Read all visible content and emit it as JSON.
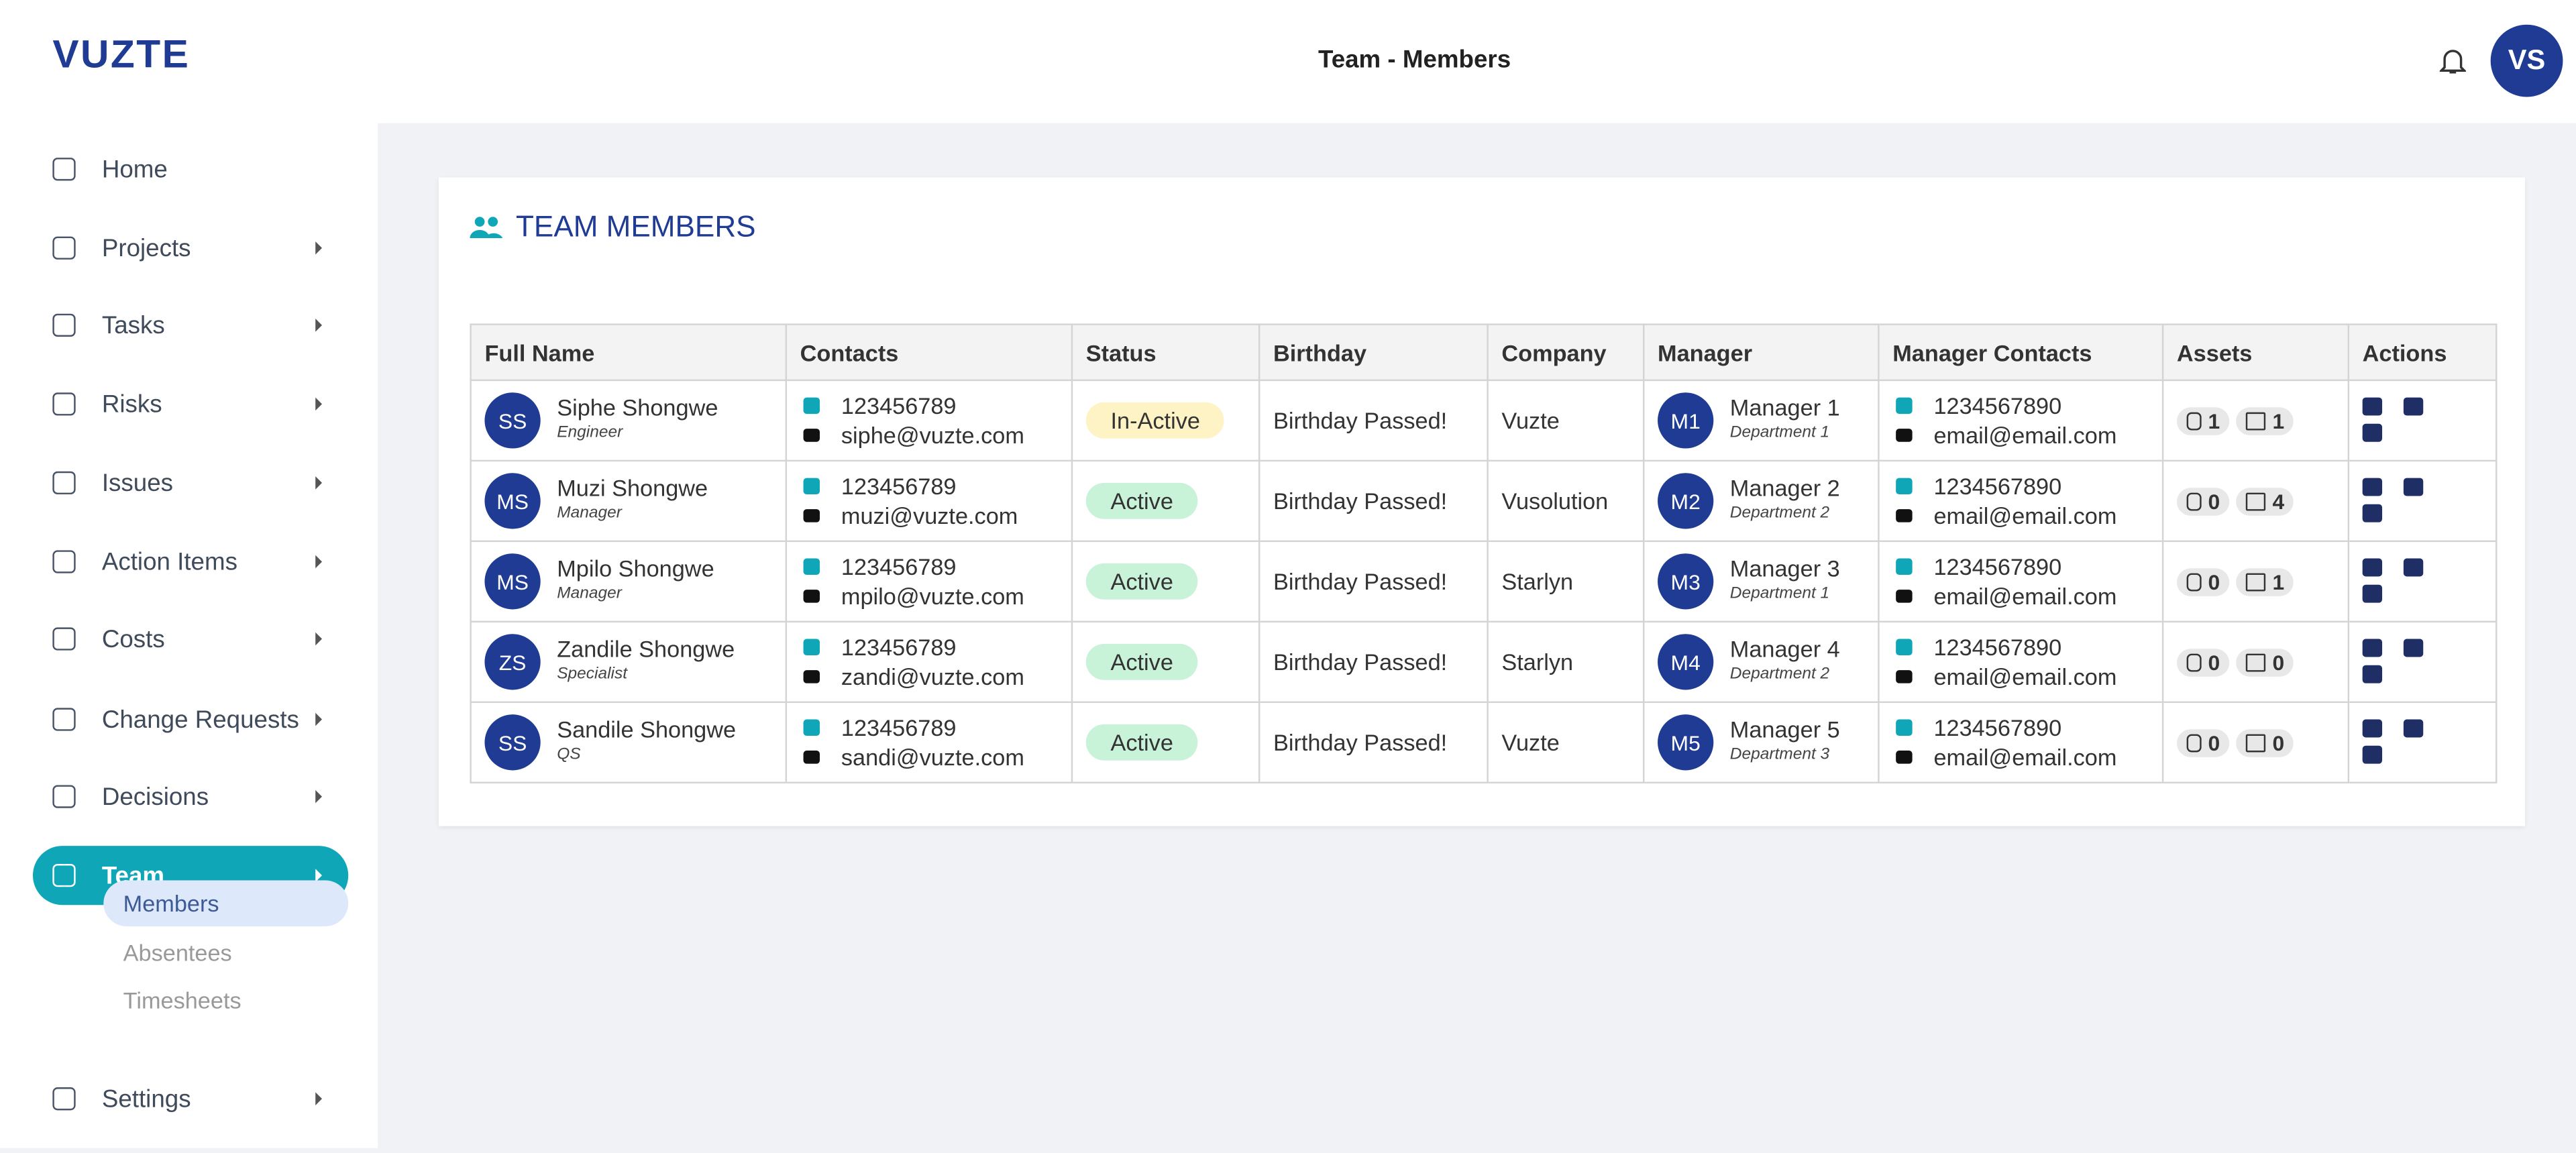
{
  "brand": "VUZTE",
  "header": {
    "title": "Team - Members",
    "user_initials": "VS"
  },
  "sidebar": {
    "items": [
      {
        "label": "Home"
      },
      {
        "label": "Projects"
      },
      {
        "label": "Tasks"
      },
      {
        "label": "Risks"
      },
      {
        "label": "Issues"
      },
      {
        "label": "Action Items"
      },
      {
        "label": "Costs"
      },
      {
        "label": "Change Requests"
      },
      {
        "label": "Decisions"
      },
      {
        "label": "Team",
        "children": [
          "Members",
          "Absentees",
          "Timesheets"
        ]
      },
      {
        "label": "Settings"
      }
    ]
  },
  "card": {
    "title": "TEAM MEMBERS"
  },
  "table": {
    "columns": [
      "Full Name",
      "Contacts",
      "Status",
      "Birthday",
      "Company",
      "Manager",
      "Manager Contacts",
      "Assets",
      "Actions"
    ],
    "rows": [
      {
        "initials": "SS",
        "name": "Siphe Shongwe",
        "role": "Engineer",
        "phone": "123456789",
        "email": "siphe@vuzte.com",
        "status": "In-Active",
        "status_color": "#fdf3c4",
        "birthday": "Birthday Passed!",
        "company": "Vuzte",
        "manager": {
          "initials": "M1",
          "name": "Manager 1",
          "department": "Department 1",
          "phone": "1234567890",
          "email": "email@email.com"
        },
        "attachments": 1,
        "comments": 1
      },
      {
        "initials": "MS",
        "name": "Muzi Shongwe",
        "role": "Manager",
        "phone": "123456789",
        "email": "muzi@vuzte.com",
        "status": "Active",
        "status_color": "#c8f3d9",
        "birthday": "Birthday Passed!",
        "company": "Vusolution",
        "manager": {
          "initials": "M2",
          "name": "Manager 2",
          "department": "Department 2",
          "phone": "1234567890",
          "email": "email@email.com"
        },
        "attachments": 0,
        "comments": 4
      },
      {
        "initials": "MS",
        "name": "Mpilo Shongwe",
        "role": "Manager",
        "phone": "123456789",
        "email": "mpilo@vuzte.com",
        "status": "Active",
        "status_color": "#c8f3d9",
        "birthday": "Birthday Passed!",
        "company": "Starlyn",
        "manager": {
          "initials": "M3",
          "name": "Manager 3",
          "department": "Department 1",
          "phone": "1234567890",
          "email": "email@email.com"
        },
        "attachments": 0,
        "comments": 1
      },
      {
        "initials": "ZS",
        "name": "Zandile Shongwe",
        "role": "Specialist",
        "phone": "123456789",
        "email": "zandi@vuzte.com",
        "status": "Active",
        "status_color": "#c8f3d9",
        "birthday": "Birthday Passed!",
        "company": "Starlyn",
        "manager": {
          "initials": "M4",
          "name": "Manager 4",
          "department": "Department 2",
          "phone": "1234567890",
          "email": "email@email.com"
        },
        "attachments": 0,
        "comments": 0
      },
      {
        "initials": "SS",
        "name": "Sandile Shongwe",
        "role": "QS",
        "phone": "123456789",
        "email": "sandi@vuzte.com",
        "status": "Active",
        "status_color": "#c8f3d9",
        "birthday": "Birthday Passed!",
        "company": "Vuzte",
        "manager": {
          "initials": "M5",
          "name": "Manager 5",
          "department": "Department 3",
          "phone": "1234567890",
          "email": "email@email.com"
        },
        "attachments": 0,
        "comments": 0
      }
    ]
  }
}
